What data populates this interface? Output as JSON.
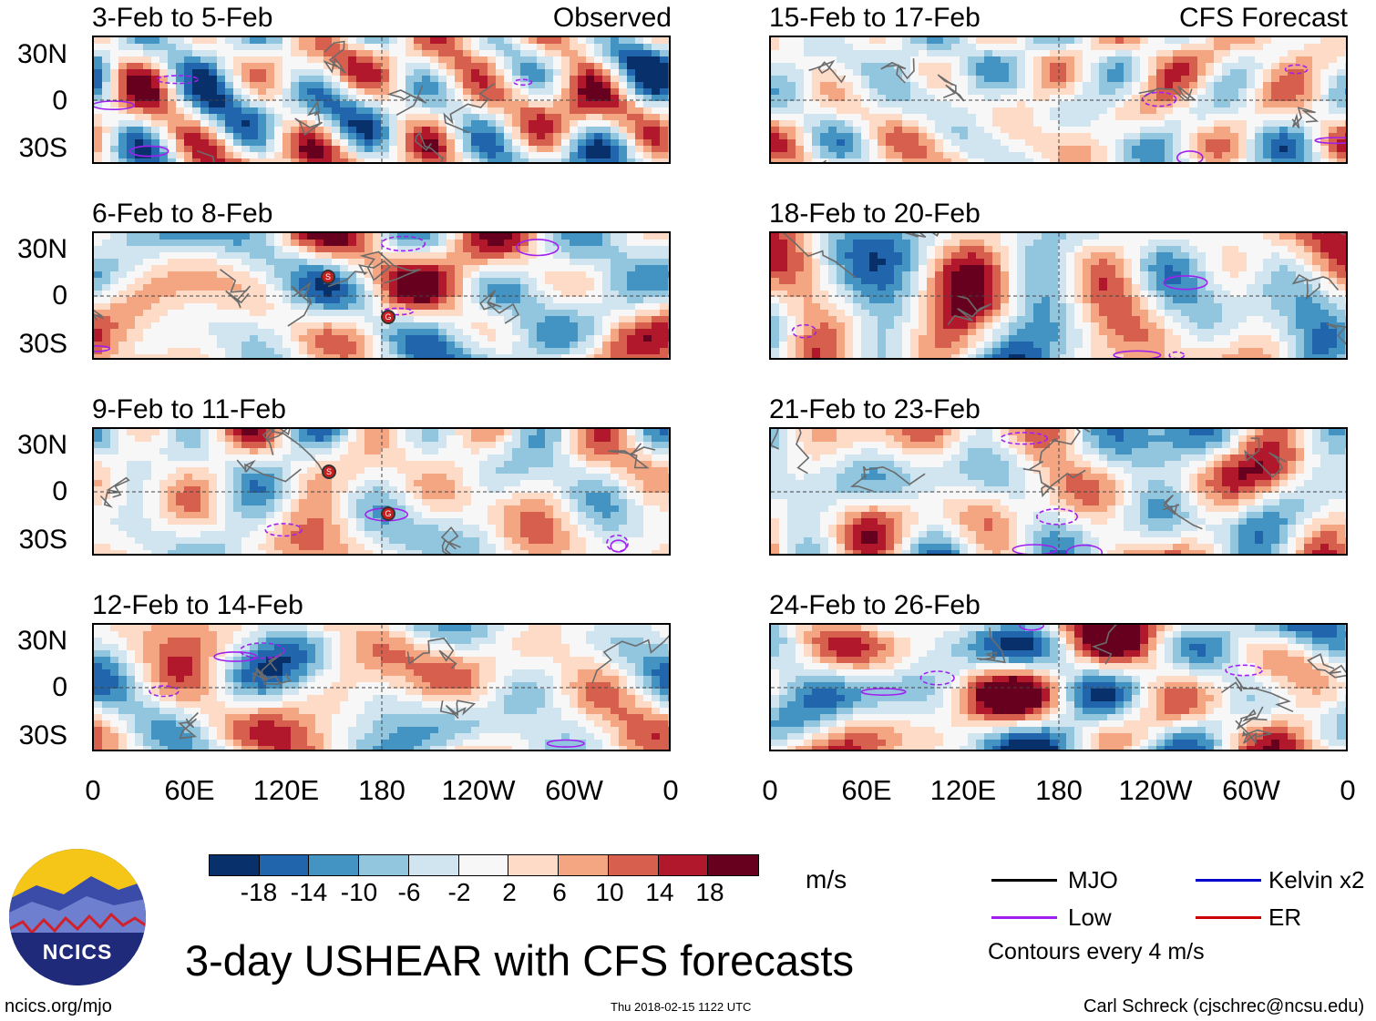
{
  "figure": {
    "title": "3-day USHEAR with CFS forecasts",
    "footer_left": "ncics.org/mjo",
    "footer_center": "Thu 2018-02-15 1122 UTC",
    "footer_right": "Carl Schreck (cjschrec@ncsu.edu)",
    "logo_text": "NCICS"
  },
  "columns": {
    "left_label": "Observed",
    "right_label": "CFS Forecast"
  },
  "panels": [
    {
      "title": "3-Feb to 5-Feb"
    },
    {
      "title": "6-Feb to 8-Feb"
    },
    {
      "title": "9-Feb to 11-Feb"
    },
    {
      "title": "12-Feb to 14-Feb"
    },
    {
      "title": "15-Feb to 17-Feb"
    },
    {
      "title": "18-Feb to 20-Feb"
    },
    {
      "title": "21-Feb to 23-Feb"
    },
    {
      "title": "24-Feb to 26-Feb"
    }
  ],
  "axes": {
    "y_ticks": [
      "30N",
      "0",
      "30S"
    ],
    "x_ticks": [
      "0",
      "60E",
      "120E",
      "180",
      "120W",
      "60W",
      "0"
    ]
  },
  "colorbar": {
    "unit": "m/s",
    "labels": [
      "-18",
      "-14",
      "-10",
      "-6",
      "-2",
      "2",
      "6",
      "10",
      "14",
      "18"
    ],
    "colors": [
      "#08306b",
      "#2166ac",
      "#4393c3",
      "#92c5de",
      "#d1e5f0",
      "#f7f7f7",
      "#fddbc7",
      "#f4a582",
      "#d6604d",
      "#b2182b",
      "#67001f"
    ]
  },
  "legend": {
    "items": [
      {
        "label": "MJO",
        "color": "#000000"
      },
      {
        "label": "Low",
        "color": "#a020f0"
      },
      {
        "label": "Kelvin x2",
        "color": "#0000cd"
      },
      {
        "label": "ER",
        "color": "#cd0000"
      }
    ],
    "note": "Contours every 4 m/s"
  },
  "storm_markers": [
    {
      "panel": "6-Feb to 8-Feb",
      "label": "S"
    },
    {
      "panel": "6-Feb to 8-Feb",
      "label": "G"
    },
    {
      "panel": "9-Feb to 11-Feb",
      "label": "S"
    },
    {
      "panel": "9-Feb to 11-Feb",
      "label": "G"
    }
  ]
}
